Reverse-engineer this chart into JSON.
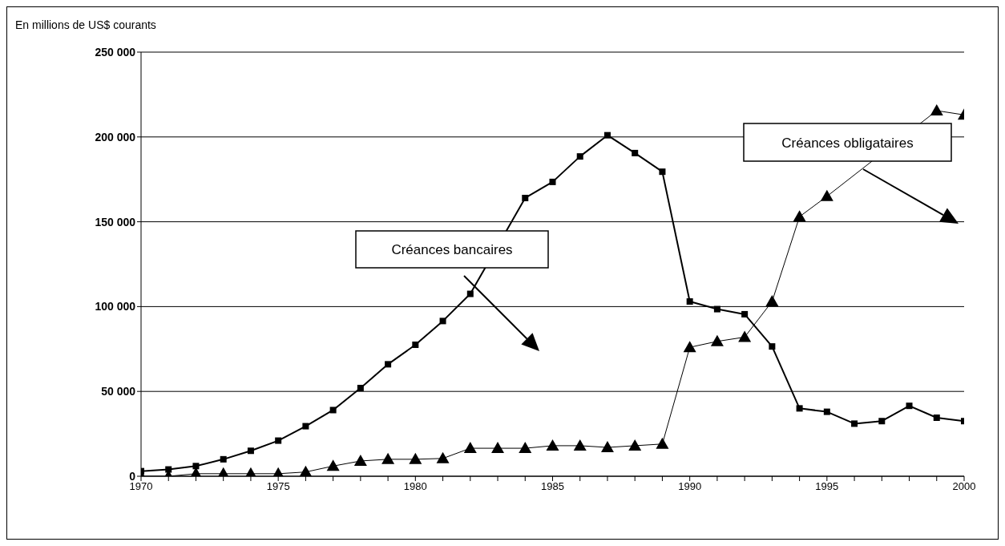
{
  "chart_data": {
    "type": "line",
    "ylabel": "En millions de US$ courants",
    "x": [
      1970,
      1971,
      1972,
      1973,
      1974,
      1975,
      1976,
      1977,
      1978,
      1979,
      1980,
      1981,
      1982,
      1983,
      1984,
      1985,
      1986,
      1987,
      1988,
      1989,
      1990,
      1991,
      1992,
      1993,
      1994,
      1995,
      1996,
      1997,
      1998,
      1999,
      2000
    ],
    "series": [
      {
        "name": "Créances bancaires",
        "color": "#000000",
        "marker": "square",
        "values": [
          3000,
          4000,
          6000,
          10000,
          15000,
          21000,
          29500,
          39000,
          52000,
          66000,
          77500,
          91500,
          107500,
          null,
          164000,
          173500,
          188500,
          201000,
          190500,
          179500,
          103000,
          98500,
          95500,
          76500,
          40000,
          38000,
          31000,
          32500,
          41500,
          34500,
          32500
        ]
      },
      {
        "name": "Créances obligataires",
        "color": "#000000",
        "marker": "triangle",
        "values": [
          0,
          0,
          1500,
          1500,
          1500,
          1500,
          2500,
          6000,
          9000,
          10000,
          10000,
          10500,
          16500,
          16500,
          16500,
          18000,
          18000,
          17000,
          18000,
          19000,
          76000,
          79500,
          82000,
          103000,
          153000,
          165000,
          null,
          null,
          null,
          215500,
          213000
        ]
      }
    ],
    "xlim": [
      1970,
      2000
    ],
    "xticks": [
      1970,
      {
        "value": 1971,
        "label": null
      },
      {
        "value": 1972,
        "label": null
      },
      {
        "value": 1973,
        "label": null
      },
      {
        "value": 1974,
        "label": null
      },
      1975,
      {
        "value": 1976,
        "label": null
      },
      {
        "value": 1977,
        "label": null
      },
      {
        "value": 1978,
        "label": null
      },
      {
        "value": 1979,
        "label": null
      },
      1980,
      {
        "value": 1981,
        "label": null
      },
      {
        "value": 1982,
        "label": null
      },
      {
        "value": 1983,
        "label": null
      },
      {
        "value": 1984,
        "label": null
      },
      1985,
      {
        "value": 1986,
        "label": null
      },
      {
        "value": 1987,
        "label": null
      },
      {
        "value": 1988,
        "label": null
      },
      {
        "value": 1989,
        "label": null
      },
      1990,
      {
        "value": 1991,
        "label": null
      },
      {
        "value": 1992,
        "label": null
      },
      {
        "value": 1993,
        "label": null
      },
      {
        "value": 1994,
        "label": null
      },
      1995,
      {
        "value": 1996,
        "label": null
      },
      {
        "value": 1997,
        "label": null
      },
      {
        "value": 1998,
        "label": null
      },
      {
        "value": 1999,
        "label": null
      },
      2000
    ],
    "ylim": [
      0,
      250000
    ],
    "yticks": [
      {
        "value": 0,
        "label": "0"
      },
      {
        "value": 50000,
        "label": "50 000"
      },
      {
        "value": 100000,
        "label": "100 000"
      },
      {
        "value": 150000,
        "label": "150 000"
      },
      {
        "value": 200000,
        "label": "200 000"
      },
      {
        "value": 250000,
        "label": "250 000"
      }
    ],
    "grid": "y"
  }
}
